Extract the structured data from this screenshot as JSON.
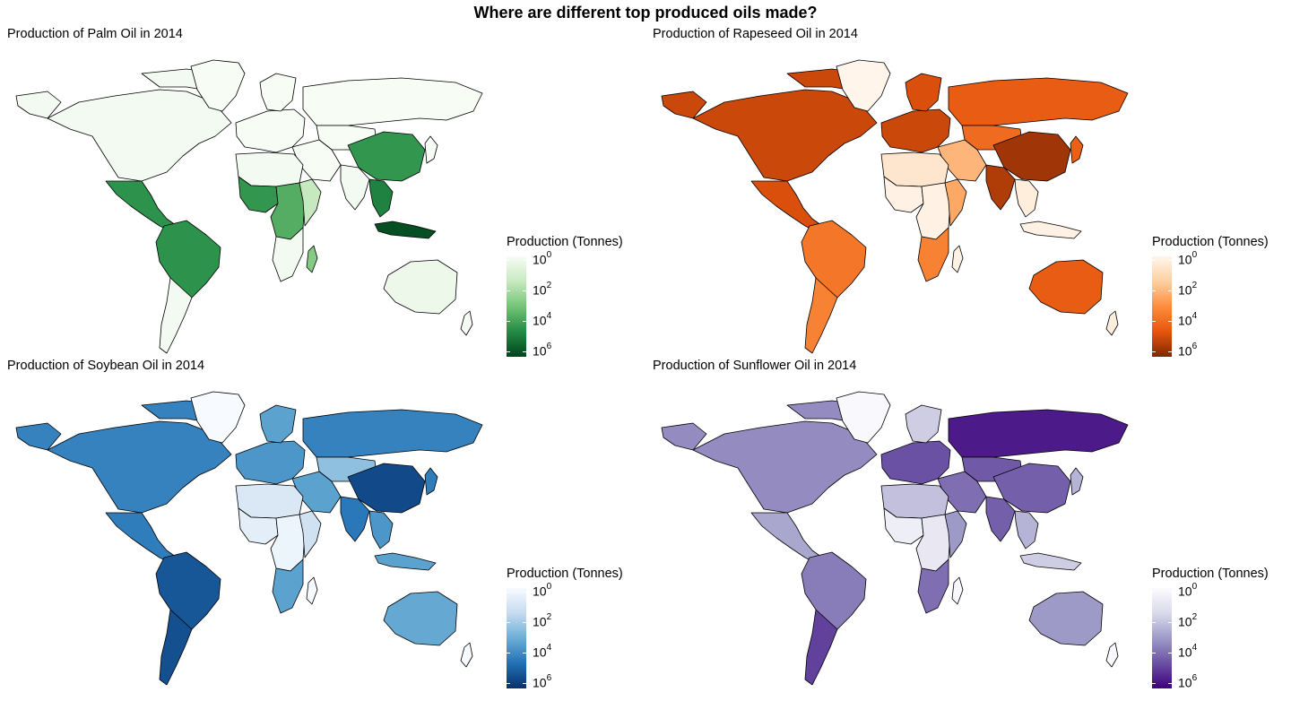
{
  "title": "Where are different top produced oils made?",
  "legend_title": "Production (Tonnes)",
  "legend_ticks": [
    "0",
    "2",
    "4",
    "6"
  ],
  "legend_tick_base": "10",
  "na_color": "#7f7f7f",
  "panels": [
    {
      "title": "Production of Palm Oil in 2014",
      "palette": [
        "#f7fcf5",
        "#c7e9c0",
        "#74c476",
        "#238b45",
        "#00441b"
      ],
      "regions": {
        "north_america": 0.02,
        "greenland": 0.0,
        "mexico_central": 0.72,
        "south_america": 0.72,
        "south_america_south": 0.02,
        "europe": 0.0,
        "scandinavia": 0.0,
        "russia": 0.0,
        "middle_east": 0.0,
        "central_asia": 0.0,
        "china": 0.7,
        "india": 0.02,
        "southeast_asia": 0.78,
        "indonesia": 0.96,
        "north_africa": 0.02,
        "west_africa": 0.7,
        "central_africa": 0.6,
        "east_africa": 0.25,
        "southern_africa": 0.02,
        "madagascar": 0.45,
        "australia": 0.05,
        "new_zealand": 0.0,
        "japan": 0.0
      }
    },
    {
      "title": "Production of Rapeseed Oil in 2014",
      "palette": [
        "#fff5eb",
        "#fdd0a2",
        "#fd8d3c",
        "#e6550d",
        "#7f2704"
      ],
      "regions": {
        "north_america": 0.82,
        "greenland": 0.0,
        "mexico_central": 0.78,
        "south_america": 0.6,
        "south_america_south": 0.55,
        "europe": 0.82,
        "scandinavia": 0.78,
        "russia": 0.72,
        "middle_east": 0.35,
        "central_asia": 0.65,
        "china": 0.92,
        "india": 0.88,
        "southeast_asia": 0.05,
        "indonesia": 0.02,
        "north_africa": 0.1,
        "west_africa": 0.02,
        "central_africa": 0.02,
        "east_africa": 0.4,
        "southern_africa": 0.55,
        "madagascar": 0.02,
        "australia": 0.72,
        "new_zealand": 0.05,
        "japan": 0.7
      }
    },
    {
      "title": "Production of Soybean Oil in 2014",
      "palette": [
        "#f7fbff",
        "#c6dbef",
        "#6baed6",
        "#2171b5",
        "#08306b"
      ],
      "regions": {
        "north_america": 0.68,
        "greenland": 0.0,
        "mexico_central": 0.7,
        "south_america": 0.85,
        "south_america_south": 0.88,
        "europe": 0.6,
        "scandinavia": 0.55,
        "russia": 0.68,
        "middle_east": 0.55,
        "central_asia": 0.4,
        "china": 0.9,
        "india": 0.72,
        "southeast_asia": 0.6,
        "indonesia": 0.55,
        "north_africa": 0.15,
        "west_africa": 0.1,
        "central_africa": 0.05,
        "east_africa": 0.2,
        "southern_africa": 0.55,
        "madagascar": 0.0,
        "australia": 0.52,
        "new_zealand": 0.0,
        "japan": 0.7
      }
    },
    {
      "title": "Production of Sunflower Oil in 2014",
      "palette": [
        "#fcfbfd",
        "#dadaeb",
        "#9e9ac8",
        "#6a51a3",
        "#3f007d"
      ],
      "regions": {
        "north_america": 0.55,
        "greenland": 0.02,
        "mexico_central": 0.45,
        "south_america": 0.6,
        "south_america_south": 0.8,
        "europe": 0.75,
        "scandinavia": 0.3,
        "russia": 0.92,
        "middle_east": 0.65,
        "central_asia": 0.72,
        "china": 0.7,
        "india": 0.7,
        "southeast_asia": 0.4,
        "indonesia": 0.3,
        "north_africa": 0.35,
        "west_africa": 0.1,
        "central_africa": 0.15,
        "east_africa": 0.5,
        "southern_africa": 0.65,
        "madagascar": 0.02,
        "australia": 0.5,
        "new_zealand": 0.02,
        "japan": 0.4
      }
    }
  ]
}
